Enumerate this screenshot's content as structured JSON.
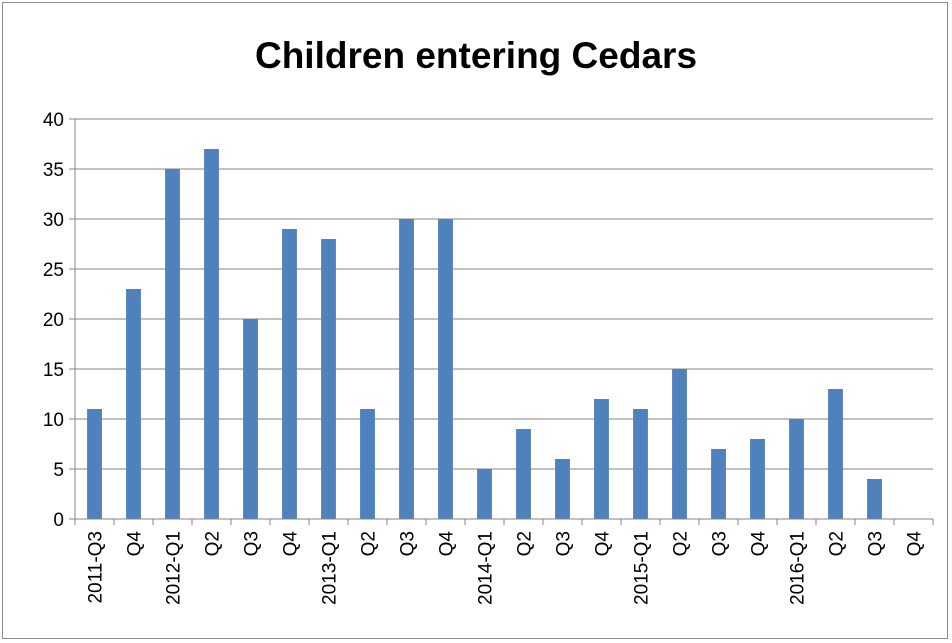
{
  "chart_data": {
    "type": "bar",
    "title": "Children entering Cedars",
    "xlabel": "",
    "ylabel": "",
    "ylim": [
      0,
      40
    ],
    "yticks": [
      0,
      5,
      10,
      15,
      20,
      25,
      30,
      35,
      40
    ],
    "categories": [
      "2011-Q3",
      "Q4",
      "2012-Q1",
      "Q2",
      "Q3",
      "Q4",
      "2013-Q1",
      "Q2",
      "Q3",
      "Q4",
      "2014-Q1",
      "Q2",
      "Q3",
      "Q4",
      "2015-Q1",
      "Q2",
      "Q3",
      "Q4",
      "2016-Q1",
      "Q2",
      "Q3",
      "Q4"
    ],
    "values": [
      11,
      23,
      35,
      37,
      20,
      29,
      28,
      11,
      30,
      30,
      5,
      9,
      6,
      12,
      11,
      15,
      7,
      8,
      10,
      13,
      4,
      0
    ],
    "bar_color": "#4f81bd",
    "grid": true,
    "legend": "none"
  }
}
